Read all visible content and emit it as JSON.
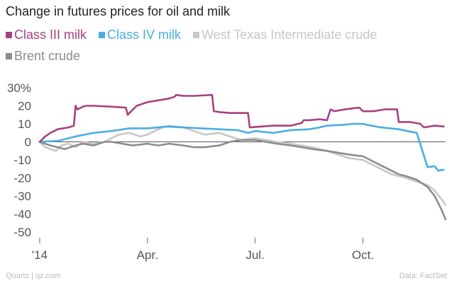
{
  "chart_data": {
    "type": "line",
    "title": "Change in futures prices for oil and milk",
    "xlabel": "",
    "ylabel": "",
    "ylim": [
      -50,
      30
    ],
    "yticks": [
      30,
      20,
      10,
      0,
      -10,
      -20,
      -30,
      -40,
      -50
    ],
    "ytick_labels": [
      "30%",
      "20",
      "10",
      "0",
      "-10",
      "-20",
      "-30",
      "-40",
      "-50"
    ],
    "xlim": [
      0,
      11.3
    ],
    "xticks": [
      0,
      3,
      6,
      9
    ],
    "xtick_labels": [
      "'14",
      "Apr.",
      "Jul.",
      "Oct."
    ],
    "source_left": "Quartz | qz.com",
    "source_right": "Data: FactSet",
    "series": [
      {
        "name": "Class III milk",
        "color": "#a8417f",
        "x": [
          0,
          0.15,
          0.3,
          0.5,
          0.8,
          0.95,
          1.0,
          1.05,
          1.2,
          1.3,
          1.5,
          2.0,
          2.4,
          2.45,
          2.5,
          2.7,
          3.0,
          3.3,
          3.6,
          3.75,
          3.8,
          4.0,
          4.3,
          4.8,
          4.85,
          5.0,
          5.3,
          5.8,
          5.85,
          6.5,
          7.0,
          7.2,
          7.3,
          7.35,
          7.5,
          7.8,
          8.0,
          8.1,
          8.2,
          8.5,
          8.9,
          9.0,
          9.3,
          9.6,
          9.95,
          10.0,
          10.3,
          10.6,
          10.65,
          10.7,
          11.0,
          11.25
        ],
        "values": [
          0,
          3,
          5,
          7,
          8,
          9,
          20,
          18,
          19.5,
          20,
          20,
          19.5,
          19,
          15,
          16,
          20,
          22,
          23,
          24,
          25,
          26,
          25.5,
          25.5,
          26,
          17,
          16.5,
          16,
          16,
          8,
          9,
          9,
          10,
          10.5,
          12,
          12,
          12.5,
          12,
          18,
          17,
          18,
          19,
          17,
          17,
          18,
          18,
          11,
          11,
          10,
          9,
          8,
          9,
          8.5
        ]
      },
      {
        "name": "Class IV milk",
        "color": "#4aaee0",
        "x": [
          0,
          0.5,
          1.0,
          1.5,
          2.0,
          2.5,
          3.0,
          3.3,
          3.5,
          4.0,
          4.5,
          5.0,
          5.5,
          5.8,
          6.0,
          6.5,
          7.0,
          7.5,
          7.8,
          8.0,
          8.5,
          8.7,
          9.0,
          9.1,
          9.5,
          10.0,
          10.5,
          10.8,
          11.0,
          11.1,
          11.25
        ],
        "values": [
          0,
          0.5,
          3,
          5,
          6,
          7.5,
          7.5,
          8,
          8.5,
          8,
          7.5,
          7,
          6.5,
          5,
          6,
          5,
          6.5,
          7,
          8,
          9,
          9.5,
          10,
          10,
          9.5,
          8,
          7,
          5,
          -14,
          -13.5,
          -16,
          -15.5
        ]
      },
      {
        "name": "West Texas Intermediate crude",
        "color": "#c7c7c7",
        "x": [
          0,
          0.15,
          0.3,
          0.45,
          0.6,
          0.8,
          1.0,
          1.2,
          1.5,
          1.8,
          2.0,
          2.2,
          2.5,
          2.8,
          3.0,
          3.3,
          3.6,
          4.0,
          4.3,
          4.6,
          5.0,
          5.3,
          5.6,
          6.0,
          6.3,
          6.6,
          7.0,
          7.3,
          7.6,
          8.0,
          8.3,
          8.6,
          9.0,
          9.2,
          9.4,
          9.6,
          9.8,
          10.0,
          10.2,
          10.5,
          10.8,
          11.0,
          11.2,
          11.3
        ],
        "values": [
          0,
          -3,
          -4,
          -5,
          -2,
          -1,
          -3,
          0,
          -1,
          0,
          2,
          4,
          5,
          3,
          4,
          7,
          9,
          8,
          6,
          4,
          5,
          3,
          1,
          2,
          1,
          0,
          -1,
          -2,
          -3,
          -5,
          -7,
          -9,
          -10,
          -12,
          -14,
          -16,
          -18,
          -19,
          -20,
          -22,
          -24,
          -27,
          -32,
          -35
        ]
      },
      {
        "name": "Brent crude",
        "color": "#8c8c8c",
        "x": [
          0,
          0.15,
          0.3,
          0.5,
          0.7,
          1.0,
          1.2,
          1.5,
          1.8,
          2.0,
          2.3,
          2.6,
          3.0,
          3.3,
          3.6,
          4.0,
          4.3,
          4.6,
          5.0,
          5.3,
          5.6,
          6.0,
          6.3,
          6.6,
          7.0,
          7.3,
          7.6,
          8.0,
          8.3,
          8.6,
          9.0,
          9.2,
          9.4,
          9.6,
          9.8,
          10.0,
          10.2,
          10.5,
          10.8,
          11.0,
          11.2,
          11.3
        ],
        "values": [
          0,
          -1,
          -2,
          -3,
          -4,
          -2,
          -1,
          -2,
          0,
          0,
          -1,
          -2,
          -1,
          -2,
          -1,
          -2,
          -3,
          -3,
          -2,
          0,
          1,
          1,
          0,
          -1,
          -2,
          -3,
          -4,
          -5,
          -6,
          -7,
          -8,
          -10,
          -12,
          -14,
          -16,
          -18,
          -19,
          -21,
          -25,
          -30,
          -38,
          -43
        ]
      }
    ]
  }
}
